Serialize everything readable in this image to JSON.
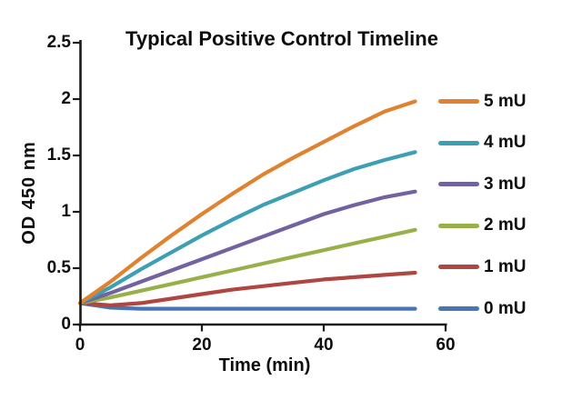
{
  "chart_data": {
    "type": "line",
    "title": "Typical Positive Control Timeline",
    "xlabel": "Time (min)",
    "ylabel": "OD  450 nm",
    "xlim": [
      0,
      60
    ],
    "ylim": [
      0,
      2.5
    ],
    "x_ticks": [
      0,
      20,
      40,
      60
    ],
    "y_ticks": [
      0,
      0.5,
      1,
      1.5,
      2,
      2.5
    ],
    "grid": false,
    "legend_position": "right",
    "axis_color": "#1a1a1a",
    "x": [
      0,
      5,
      10,
      15,
      20,
      25,
      30,
      35,
      40,
      45,
      50,
      55
    ],
    "series": [
      {
        "name": "5 mU",
        "color": "#E08330",
        "values": [
          0.19,
          0.38,
          0.59,
          0.79,
          0.98,
          1.16,
          1.33,
          1.48,
          1.62,
          1.76,
          1.89,
          1.98
        ]
      },
      {
        "name": "4 mU",
        "color": "#3D9FB4",
        "values": [
          0.19,
          0.33,
          0.49,
          0.64,
          0.79,
          0.93,
          1.06,
          1.17,
          1.28,
          1.38,
          1.46,
          1.53
        ]
      },
      {
        "name": "3 mU",
        "color": "#72629F",
        "values": [
          0.19,
          0.28,
          0.38,
          0.48,
          0.58,
          0.68,
          0.78,
          0.88,
          0.98,
          1.06,
          1.13,
          1.18
        ]
      },
      {
        "name": "2 mU",
        "color": "#97B04A",
        "values": [
          0.19,
          0.24,
          0.3,
          0.36,
          0.42,
          0.48,
          0.54,
          0.6,
          0.66,
          0.72,
          0.78,
          0.84
        ]
      },
      {
        "name": "1 mU",
        "color": "#B04642",
        "values": [
          0.19,
          0.17,
          0.19,
          0.23,
          0.27,
          0.31,
          0.34,
          0.37,
          0.4,
          0.42,
          0.44,
          0.46
        ]
      },
      {
        "name": "0 mU",
        "color": "#4676B6",
        "values": [
          0.19,
          0.15,
          0.14,
          0.14,
          0.14,
          0.14,
          0.14,
          0.14,
          0.14,
          0.14,
          0.14,
          0.14
        ]
      }
    ]
  }
}
